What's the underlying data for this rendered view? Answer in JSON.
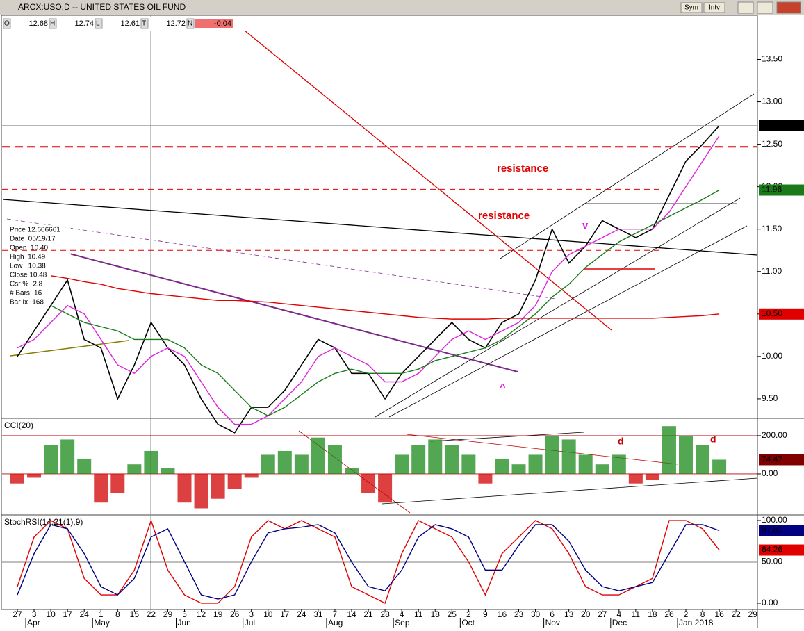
{
  "window": {
    "title": "ARCX:USO,D -- UNITED STATES OIL FUND",
    "buttons": [
      "Sym",
      "Intv"
    ]
  },
  "quote": [
    {
      "key": "O",
      "value": "12.68"
    },
    {
      "key": "H",
      "value": "12.74"
    },
    {
      "key": "L",
      "value": "12.61"
    },
    {
      "key": "T",
      "value": "12.72"
    },
    {
      "key": "N",
      "value": "-0.04"
    }
  ],
  "cursor_info": [
    "Price 12.606661",
    "Date  05/19/17",
    "Open  10.40",
    "High  10.49",
    "Low   10.38",
    "Close 10.48",
    "Csr % -2.8",
    "# Bars -16",
    "Bar Ix -168"
  ],
  "chart_data": [
    {
      "type": "line",
      "categories": [
        "27",
        "3",
        "10",
        "17",
        "24",
        "1",
        "8",
        "15",
        "22",
        "29",
        "5",
        "12",
        "19",
        "26",
        "3",
        "10",
        "17",
        "24",
        "31",
        "7",
        "14",
        "21",
        "28",
        "4",
        "11",
        "18",
        "25",
        "2",
        "9",
        "16",
        "23",
        "30",
        "6",
        "13",
        "20",
        "27",
        "4",
        "11",
        "18",
        "26",
        "2",
        "8",
        "16",
        "22",
        "29"
      ],
      "months": [
        "Apr",
        "May",
        "Jun",
        "Jul",
        "Aug",
        "Sep",
        "Oct",
        "Nov",
        "Dec",
        "Jan 2018"
      ],
      "ylim": [
        9.27,
        14.02
      ],
      "yticks": [
        {
          "value": 9.5,
          "label": "9.50"
        },
        {
          "value": 10,
          "label": "10.00"
        },
        {
          "value": 10.5,
          "label": "10.50"
        },
        {
          "value": 11,
          "label": "11.00"
        },
        {
          "value": 11.5,
          "label": "11.50"
        },
        {
          "value": 12,
          "label": "12.00"
        },
        {
          "value": 12.5,
          "label": "12.50"
        },
        {
          "value": 13,
          "label": "13.00"
        },
        {
          "value": 13.5,
          "label": "13.50"
        }
      ],
      "series": [
        {
          "name": "USO",
          "color": "#000000",
          "values": [
            10.0,
            10.3,
            10.6,
            10.9,
            10.2,
            10.1,
            9.5,
            9.9,
            10.4,
            10.1,
            9.9,
            9.5,
            9.2,
            9.1,
            9.4,
            9.4,
            9.6,
            9.9,
            10.2,
            10.1,
            9.8,
            9.8,
            9.5,
            9.8,
            10.0,
            10.2,
            10.4,
            10.2,
            10.1,
            10.4,
            10.5,
            10.9,
            11.5,
            11.1,
            11.3,
            11.6,
            11.5,
            11.4,
            11.5,
            11.9,
            12.3,
            12.5,
            12.72,
            null,
            null
          ],
          "last_label": "12.72",
          "tag_color": "#000000"
        },
        {
          "name": "MA20",
          "color": "#e020e0",
          "values": [
            10.1,
            10.2,
            10.4,
            10.6,
            10.5,
            10.2,
            9.9,
            9.8,
            10.0,
            10.1,
            10.0,
            9.7,
            9.4,
            9.2,
            9.2,
            9.3,
            9.5,
            9.7,
            10.0,
            10.1,
            10.0,
            9.9,
            9.7,
            9.7,
            9.8,
            10.0,
            10.2,
            10.3,
            10.2,
            10.3,
            10.4,
            10.6,
            11.0,
            11.2,
            11.3,
            11.4,
            11.5,
            11.5,
            11.5,
            11.7,
            12.0,
            12.3,
            12.6,
            null,
            null
          ],
          "last_label": null,
          "tag_color": "#e020e0"
        },
        {
          "name": "MA50",
          "color": "#1a7a1a",
          "values": [
            null,
            null,
            10.6,
            10.5,
            10.4,
            10.35,
            10.3,
            10.2,
            10.2,
            10.2,
            10.1,
            9.9,
            9.8,
            9.6,
            9.4,
            9.3,
            9.4,
            9.55,
            9.7,
            9.8,
            9.85,
            9.8,
            9.8,
            9.8,
            9.85,
            9.95,
            10.0,
            10.05,
            10.1,
            10.2,
            10.35,
            10.5,
            10.7,
            10.85,
            11.05,
            11.2,
            11.35,
            11.45,
            11.55,
            11.65,
            11.75,
            11.85,
            11.96,
            null,
            null
          ],
          "last_label": "11.96",
          "tag_color": "#1a7a1a"
        },
        {
          "name": "MA200",
          "color": "#e00000",
          "values": [
            null,
            null,
            10.95,
            10.92,
            10.88,
            10.85,
            10.8,
            10.77,
            10.74,
            10.72,
            10.7,
            10.68,
            10.66,
            10.66,
            10.65,
            10.64,
            10.62,
            10.6,
            10.58,
            10.56,
            10.54,
            10.52,
            10.5,
            10.48,
            10.46,
            10.45,
            10.44,
            10.44,
            10.44,
            10.45,
            10.45,
            10.45,
            10.45,
            10.45,
            10.45,
            10.45,
            10.45,
            10.45,
            10.45,
            10.46,
            10.47,
            10.48,
            10.5,
            null,
            null
          ],
          "last_label": "10.50",
          "tag_color": "#e00000"
        }
      ],
      "hlines": [
        12.47,
        11.97,
        11.25
      ],
      "annotations": [
        "resistance",
        "resistance",
        "v",
        "^",
        "d",
        "d"
      ]
    },
    {
      "type": "bar",
      "title": "CCI(20)",
      "ylim": [
        -211,
        287
      ],
      "yticks": [
        {
          "value": 0,
          "label": "0.00"
        },
        {
          "value": 200,
          "label": "200.00"
        }
      ],
      "values": [
        -50,
        -20,
        150,
        180,
        80,
        -150,
        -100,
        50,
        120,
        30,
        -150,
        -180,
        -130,
        -80,
        -20,
        100,
        120,
        100,
        190,
        150,
        30,
        -100,
        -150,
        100,
        150,
        180,
        150,
        100,
        -50,
        80,
        50,
        100,
        200,
        180,
        100,
        50,
        100,
        -50,
        -30,
        250,
        200,
        150,
        74.47,
        null,
        null
      ],
      "last_label": "74.47",
      "colors": {
        "up": "#1a8a1a",
        "down": "#d00000"
      }
    },
    {
      "type": "line",
      "title": "StochRSI(14,21(1),9)",
      "ylim": [
        -7.6,
        105.9
      ],
      "yticks": [
        {
          "value": 0,
          "label": "0.00"
        },
        {
          "value": 50,
          "label": "50.00"
        },
        {
          "value": 100,
          "label": "100.00"
        }
      ],
      "series": [
        {
          "name": "StochRSI",
          "color": "#e00000",
          "values": [
            20,
            80,
            100,
            90,
            30,
            10,
            10,
            40,
            100,
            40,
            10,
            0,
            0,
            20,
            80,
            100,
            90,
            100,
            90,
            80,
            20,
            10,
            0,
            60,
            100,
            90,
            80,
            50,
            10,
            60,
            80,
            100,
            90,
            60,
            20,
            10,
            10,
            20,
            30,
            100,
            100,
            90,
            64.26,
            null,
            null
          ],
          "last_label": "64.26"
        },
        {
          "name": "Signal",
          "color": "#000080",
          "values": [
            10,
            60,
            95,
            90,
            60,
            20,
            10,
            30,
            80,
            90,
            50,
            10,
            5,
            10,
            50,
            85,
            90,
            92,
            95,
            85,
            50,
            20,
            15,
            40,
            80,
            95,
            90,
            80,
            40,
            40,
            70,
            95,
            95,
            75,
            40,
            20,
            15,
            20,
            25,
            60,
            95,
            95,
            87.81,
            null,
            null
          ],
          "last_label": "87.81"
        }
      ]
    }
  ]
}
